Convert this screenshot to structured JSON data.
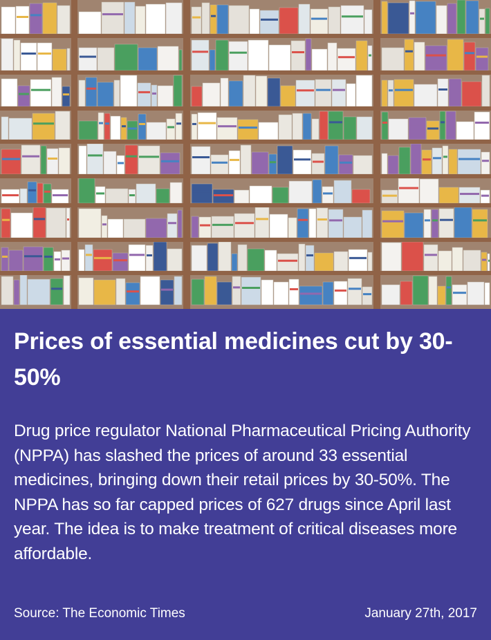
{
  "article": {
    "headline": "Prices of essential medicines cut by 30-50%",
    "body": "Drug price regulator National Pharmaceutical Pricing Authority (NPPA) has slashed the prices of around 33 essential medicines, bringing down their retail prices by 30-50%. The NPPA has so far capped prices of 627 drugs since April last year. The idea is to make treatment of critical diseases more affordable.",
    "source": "Source: The Economic Times",
    "date": "January 27th, 2017"
  },
  "colors": {
    "panel_background": "#423e96",
    "text": "#ffffff",
    "shelf_frame": "#8a5a3c"
  },
  "image": {
    "subject": "pharmacy-shelves-photo"
  }
}
